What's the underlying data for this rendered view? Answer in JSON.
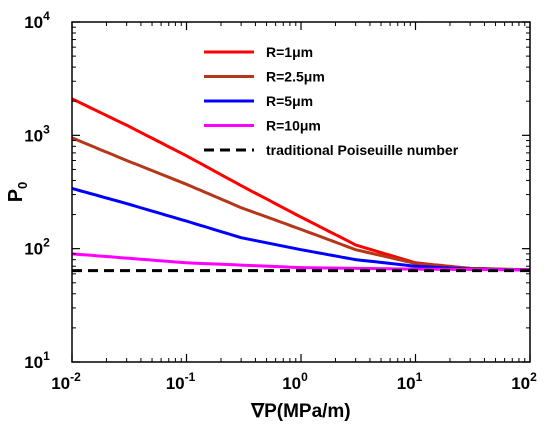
{
  "chart_data": {
    "type": "line",
    "x_scale": "log",
    "y_scale": "log",
    "xlim": [
      0.01,
      100
    ],
    "ylim": [
      10,
      10000
    ],
    "x_ticks": [
      {
        "base": "10",
        "exp": "-2",
        "value": 0.01
      },
      {
        "base": "10",
        "exp": "-1",
        "value": 0.1
      },
      {
        "base": "10",
        "exp": "0",
        "value": 1
      },
      {
        "base": "10",
        "exp": "1",
        "value": 10
      },
      {
        "base": "10",
        "exp": "2",
        "value": 100
      }
    ],
    "y_ticks": [
      {
        "base": "10",
        "exp": "1",
        "value": 10
      },
      {
        "base": "10",
        "exp": "2",
        "value": 100
      },
      {
        "base": "10",
        "exp": "3",
        "value": 1000
      },
      {
        "base": "10",
        "exp": "4",
        "value": 10000
      }
    ],
    "xlabel": {
      "symbol": "∇",
      "text": "P(MPa/m)"
    },
    "ylabel": {
      "main": "P",
      "sub": "0"
    },
    "grid": false,
    "legend_position": "top-right",
    "series": [
      {
        "name": "R=1μm",
        "color": "#ff0000",
        "x": [
          0.01,
          0.03,
          0.1,
          0.3,
          1,
          3,
          10,
          30,
          100
        ],
        "y": [
          2100,
          1230,
          660,
          360,
          190,
          108,
          75,
          67,
          65
        ]
      },
      {
        "name": "R=2.5μm",
        "color": "#b5371a",
        "x": [
          0.01,
          0.03,
          0.1,
          0.3,
          1,
          3,
          10,
          30,
          100
        ],
        "y": [
          950,
          600,
          370,
          230,
          148,
          98,
          74,
          67,
          65
        ]
      },
      {
        "name": "R=5μm",
        "color": "#0000ff",
        "x": [
          0.01,
          0.03,
          0.1,
          0.3,
          1,
          3,
          10,
          30,
          100
        ],
        "y": [
          340,
          250,
          175,
          125,
          98,
          80,
          70,
          66,
          65
        ]
      },
      {
        "name": "R=10μm",
        "color": "#ff00ff",
        "x": [
          0.01,
          0.1,
          1,
          10,
          100
        ],
        "y": [
          90,
          75,
          68,
          66,
          65
        ]
      },
      {
        "name": "traditional Poiseuille number",
        "color": "#000000",
        "dashed": true,
        "x": [
          0.01,
          100
        ],
        "y": [
          64,
          64
        ]
      }
    ]
  }
}
